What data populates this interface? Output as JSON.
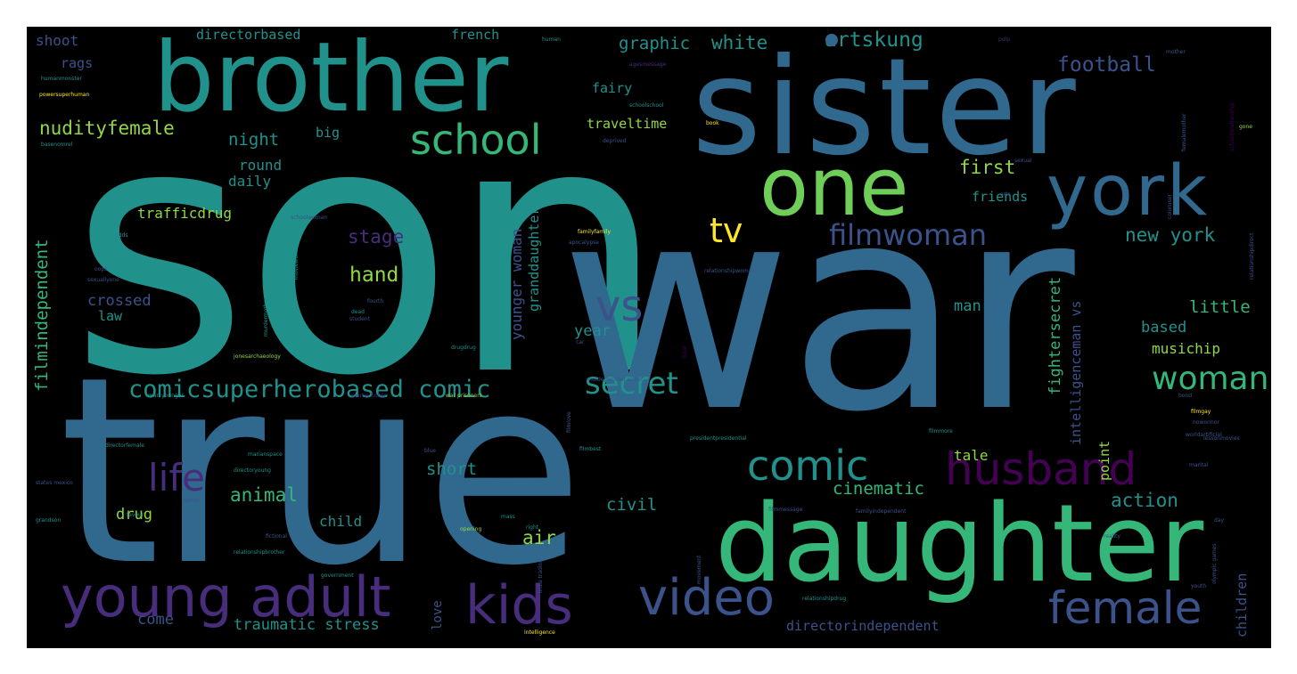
{
  "palette": {
    "teal": "#21918c",
    "blue": "#31688e",
    "slate": "#3b528b",
    "purple": "#472d7b",
    "deep_purple": "#440154",
    "green": "#35b779",
    "lime": "#6ece58",
    "light_green": "#90d743",
    "yellow": "#fde725",
    "background": "#000000"
  },
  "words": [
    {
      "text": "son",
      "color": "teal"
    },
    {
      "text": "war",
      "color": "blue"
    },
    {
      "text": "true",
      "color": "blue"
    },
    {
      "text": "sister",
      "color": "blue"
    },
    {
      "text": "brother",
      "color": "teal"
    },
    {
      "text": "daughter",
      "color": "green"
    },
    {
      "text": "one",
      "color": "lime"
    },
    {
      "text": "york",
      "color": "blue"
    },
    {
      "text": "young adult",
      "color": "purple"
    },
    {
      "text": "video",
      "color": "slate"
    },
    {
      "text": "kids",
      "color": "purple"
    },
    {
      "text": "female",
      "color": "slate"
    },
    {
      "text": "husband",
      "color": "deep_purple"
    },
    {
      "text": "comic",
      "color": "teal"
    },
    {
      "text": "school",
      "color": "green"
    },
    {
      "text": "vs",
      "color": "slate"
    },
    {
      "text": "secret",
      "color": "teal"
    },
    {
      "text": "comicsuperherobased comic",
      "color": "teal"
    },
    {
      "text": "life",
      "color": "purple"
    },
    {
      "text": "woman",
      "color": "green"
    },
    {
      "text": "filmwoman",
      "color": "slate"
    },
    {
      "text": "tv",
      "color": "yellow"
    },
    {
      "text": "nudityfemale",
      "color": "light_green"
    },
    {
      "text": "football",
      "color": "slate"
    },
    {
      "text": "artskung",
      "color": "teal"
    },
    {
      "text": "white",
      "color": "teal"
    },
    {
      "text": "graphic",
      "color": "teal"
    },
    {
      "text": "new york",
      "color": "teal"
    },
    {
      "text": "first",
      "color": "light_green"
    },
    {
      "text": "friends",
      "color": "teal"
    },
    {
      "text": "stage",
      "color": "purple"
    },
    {
      "text": "hand",
      "color": "light_green"
    },
    {
      "text": "night",
      "color": "teal"
    },
    {
      "text": "round",
      "color": "teal"
    },
    {
      "text": "daily",
      "color": "teal"
    },
    {
      "text": "trafficdrug",
      "color": "light_green"
    },
    {
      "text": "crossed",
      "color": "slate"
    },
    {
      "text": "law",
      "color": "teal"
    },
    {
      "text": "filmindependent",
      "color": "green"
    },
    {
      "text": "younger woman",
      "color": "slate"
    },
    {
      "text": "granddaughter",
      "color": "teal"
    },
    {
      "text": "year",
      "color": "teal"
    },
    {
      "text": "little",
      "color": "green"
    },
    {
      "text": "based",
      "color": "teal"
    },
    {
      "text": "musichip",
      "color": "light_green"
    },
    {
      "text": "man",
      "color": "teal"
    },
    {
      "text": "fightersecret",
      "color": "green"
    },
    {
      "text": "intelligenceman vs",
      "color": "slate"
    },
    {
      "text": "point",
      "color": "light_green"
    },
    {
      "text": "tale",
      "color": "light_green"
    },
    {
      "text": "cinematic",
      "color": "green"
    },
    {
      "text": "action",
      "color": "teal"
    },
    {
      "text": "animal",
      "color": "green"
    },
    {
      "text": "short",
      "color": "teal"
    },
    {
      "text": "civil",
      "color": "teal"
    },
    {
      "text": "drug",
      "color": "light_green"
    },
    {
      "text": "child",
      "color": "teal"
    },
    {
      "text": "air",
      "color": "light_green"
    },
    {
      "text": "come",
      "color": "slate"
    },
    {
      "text": "traumatic stress",
      "color": "teal"
    },
    {
      "text": "love",
      "color": "slate"
    },
    {
      "text": "directorindependent",
      "color": "slate"
    },
    {
      "text": "children",
      "color": "slate"
    },
    {
      "text": "shoot",
      "color": "slate"
    },
    {
      "text": "rags",
      "color": "slate"
    },
    {
      "text": "directorbased",
      "color": "teal"
    },
    {
      "text": "french",
      "color": "teal"
    },
    {
      "text": "fairy",
      "color": "teal"
    },
    {
      "text": "traveltime",
      "color": "light_green"
    },
    {
      "text": "big",
      "color": "teal"
    },
    {
      "text": "human",
      "color": "teal"
    },
    {
      "text": "agesmessage",
      "color": "purple"
    },
    {
      "text": "schoolschool",
      "color": "teal"
    },
    {
      "text": "deprived",
      "color": "slate"
    },
    {
      "text": "book",
      "color": "yellow"
    },
    {
      "text": "mother",
      "color": "slate"
    },
    {
      "text": "pulp",
      "color": "purple"
    },
    {
      "text": "gone",
      "color": "light_green"
    },
    {
      "text": "sexual",
      "color": "slate"
    },
    {
      "text": "powersuperhuman",
      "color": "yellow"
    },
    {
      "text": "humanmonster",
      "color": "teal"
    },
    {
      "text": "familyfamily",
      "color": "yellow"
    },
    {
      "text": "relationshipwoman",
      "color": "slate"
    },
    {
      "text": "schoolwoman",
      "color": "slate"
    },
    {
      "text": "worldds",
      "color": "teal"
    },
    {
      "text": "musician",
      "color": "teal"
    },
    {
      "text": "relationshipdrug",
      "color": "teal"
    },
    {
      "text": "relationshipbrother",
      "color": "teal"
    },
    {
      "text": "presidentpresidential",
      "color": "teal"
    },
    {
      "text": "directorfemale",
      "color": "teal"
    },
    {
      "text": "marianspace",
      "color": "teal"
    },
    {
      "text": "directoryoung",
      "color": "teal"
    },
    {
      "text": "filmbest",
      "color": "teal"
    },
    {
      "text": "filmmessage",
      "color": "slate"
    },
    {
      "text": "familyindependent",
      "color": "slate"
    },
    {
      "text": "marital",
      "color": "slate"
    },
    {
      "text": "reality",
      "color": "slate"
    },
    {
      "text": "jonesarchaeology",
      "color": "light_green"
    },
    {
      "text": "drugdrug",
      "color": "teal"
    },
    {
      "text": "martin luther",
      "color": "purple"
    },
    {
      "text": "war prisoners",
      "color": "light_green"
    },
    {
      "text": "man younger",
      "color": "teal"
    },
    {
      "text": "blue",
      "color": "slate"
    },
    {
      "text": "mass",
      "color": "teal"
    },
    {
      "text": "opening",
      "color": "light_green"
    },
    {
      "text": "right",
      "color": "teal"
    },
    {
      "text": "government",
      "color": "teal"
    },
    {
      "text": "intelligence",
      "color": "yellow"
    },
    {
      "text": "grandson",
      "color": "teal"
    },
    {
      "text": "states mexico",
      "color": "slate"
    },
    {
      "text": "dead",
      "color": "teal"
    },
    {
      "text": "fourth",
      "color": "slate"
    },
    {
      "text": "student",
      "color": "slate"
    },
    {
      "text": "arts",
      "color": "slate"
    },
    {
      "text": "bond",
      "color": "slate"
    },
    {
      "text": "filmgay",
      "color": "yellow"
    },
    {
      "text": "day",
      "color": "slate"
    },
    {
      "text": "youth",
      "color": "slate"
    },
    {
      "text": "olympic games",
      "color": "slate"
    },
    {
      "text": "relationshipdirect",
      "color": "slate"
    },
    {
      "text": "schoolrelationship",
      "color": "deep_purple"
    },
    {
      "text": "femalemother",
      "color": "slate"
    },
    {
      "text": "coloruser",
      "color": "slate"
    },
    {
      "text": "india trading",
      "color": "slate"
    },
    {
      "text": "movement",
      "color": "slate"
    },
    {
      "text": "basenomrel",
      "color": "teal"
    },
    {
      "text": "favour",
      "color": "teal"
    },
    {
      "text": "sense",
      "color": "slate"
    },
    {
      "text": "filmmore",
      "color": "teal"
    },
    {
      "text": "filmlove",
      "color": "slate"
    },
    {
      "text": "boat",
      "color": "deep_purple"
    },
    {
      "text": "fictional",
      "color": "slate"
    },
    {
      "text": "car",
      "color": "slate"
    },
    {
      "text": "apocalypse",
      "color": "slate"
    },
    {
      "text": "worldartificial",
      "color": "slate"
    },
    {
      "text": "moviewomen",
      "color": "teal"
    },
    {
      "text": "murdermother",
      "color": "teal"
    },
    {
      "text": "sexuallyone",
      "color": "slate"
    },
    {
      "text": "oops",
      "color": "slate"
    },
    {
      "text": "nowonnor",
      "color": "slate"
    },
    {
      "text": "lessonmovies",
      "color": "slate"
    },
    {
      "text": "murderbrother sister",
      "color": "slate"
    }
  ]
}
